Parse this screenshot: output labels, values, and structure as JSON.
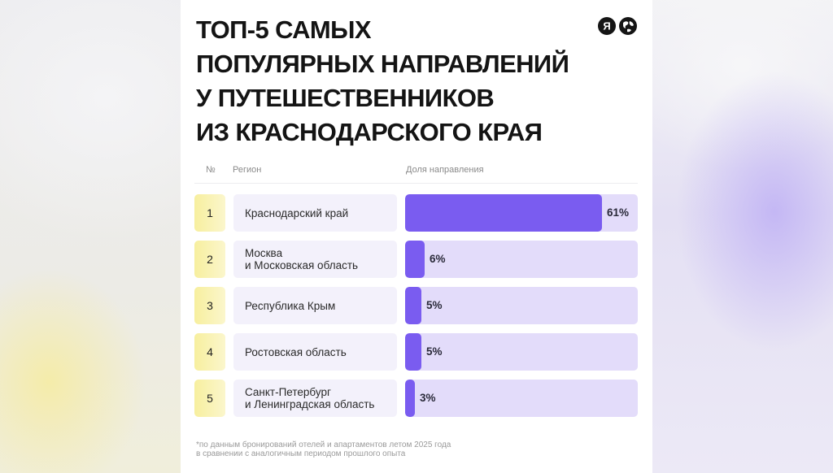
{
  "title": "ТОП-5 САМЫХ\nПОПУЛЯРНЫХ НАПРАВЛЕНИЙ\nУ ПУТЕШЕСТВЕННИКОВ\nИЗ КРАСНОДАРСКОГО КРАЯ",
  "logo": {
    "letter": "Я",
    "icon": "globe-icon"
  },
  "table_headers": {
    "num": "№",
    "region": "Регион",
    "share": "Доля направления"
  },
  "footnote": "*по данным бронирований отелей и апартаментов летом 2025 года\nв сравнении с аналогичным периодом прошлого опыта",
  "colors": {
    "bar": "#7a5cf0",
    "track": "#e3dcfa",
    "rank_bg": "#f7ef9e",
    "region_bg": "#f3f1fb"
  },
  "chart_data": {
    "type": "bar",
    "title": "ТОП-5 САМЫХ ПОПУЛЯРНЫХ НАПРАВЛЕНИЙ У ПУТЕШЕСТВЕННИКОВ ИЗ КРАСНОДАРСКОГО КРАЯ",
    "orientation": "horizontal",
    "ranks": [
      "1",
      "2",
      "3",
      "4",
      "5"
    ],
    "categories": [
      "Краснодарский край",
      "Москва\nи Московская область",
      "Республика Крым",
      "Ростовская область",
      "Санкт-Петербург\nи Ленинградская область"
    ],
    "values": [
      61,
      6,
      5,
      5,
      3
    ],
    "value_labels": [
      "61%",
      "6%",
      "5%",
      "5%",
      "3%"
    ],
    "unit": "%",
    "xlim": [
      0,
      72
    ]
  }
}
